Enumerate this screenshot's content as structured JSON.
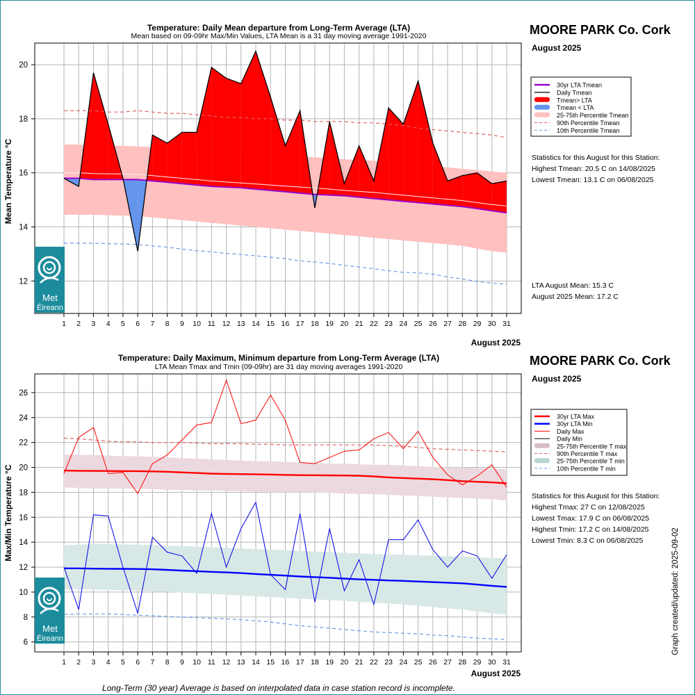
{
  "station": "MOORE PARK Co. Cork",
  "month_label": "August 2025",
  "x_axis_label": "August 2025",
  "footer_note": "Long-Term (30 year) Average is based on interpolated data in case station record is incomplete.",
  "updated_label": "Graph created/updated:  2025-09-02",
  "logo": {
    "line1": "Met",
    "line2": "Éireann",
    "icon": "met-eireann-swirl-logo"
  },
  "colors": {
    "red": "#ff0000",
    "purple": "#9900cc",
    "blue": "#6495ed",
    "pink_band": "#ffc0c0",
    "max_band": "#ecd9e0",
    "min_band": "#d8e8e6",
    "lta_max": "#ff0000",
    "lta_min": "#0000ff",
    "logo_bg": "#1c8c9c"
  },
  "top": {
    "title": "Temperature: Daily Mean departure from Long-Term Average (LTA)",
    "subtitle": "Mean based on 09-09hr Max/Min Values, LTA Mean is a 31 day moving average 1991-2020",
    "ylabel": "Mean Temperature °C",
    "legend": [
      "30yr LTA Tmean",
      "Daily Tmean",
      "Tmean> LTA",
      "Tmean < LTA",
      "25-75th Percentile Tmean",
      "90th Percentile Tmean",
      "10th Percentile Tmean"
    ],
    "stats": [
      "Statistics for this August for this Station:",
      "Highest Tmean: 20.5 C on 14/08/2025",
      "Lowest Tmean: 13.1 C on 06/08/2025"
    ],
    "means": [
      "LTA August Mean: 15.3 C",
      "August 2025 Mean: 17.2 C"
    ]
  },
  "bottom": {
    "title": "Temperature: Daily Maximum, Minimum departure from Long-Term Average (LTA)",
    "subtitle": "LTA Mean Tmax and Tmin (09-09hr) are 31 day moving averages 1991-2020",
    "ylabel": "Max/Min Temperature °C",
    "legend": [
      "30yr LTA Max",
      "30yr LTA Min",
      "Daily Max",
      "Daily Min",
      "25-75th Percentile T max",
      "90th Percentile T max",
      "25-75th Percentile T min",
      "10th Percentile T min"
    ],
    "stats": [
      "Statistics for this August for this Station:",
      "Highest Tmax: 27 C on 12/08/2025",
      "Lowest Tmax: 17.9 C on 06/08/2025",
      "Highest Tmin: 17.2 C on 14/08/2025",
      "Lowest Tmin: 8.3 C on 06/08/2025"
    ]
  },
  "chart_data": [
    {
      "type": "area",
      "title": "Temperature: Daily Mean departure from Long-Term Average (LTA)",
      "xlabel": "August 2025",
      "ylabel": "Mean Temperature °C",
      "x": [
        1,
        2,
        3,
        4,
        5,
        6,
        7,
        8,
        9,
        10,
        11,
        12,
        13,
        14,
        15,
        16,
        17,
        18,
        19,
        20,
        21,
        22,
        23,
        24,
        25,
        26,
        27,
        28,
        29,
        30,
        31
      ],
      "ylim": [
        10.8,
        20.8
      ],
      "yticks": [
        12,
        14,
        16,
        18,
        20
      ],
      "grid": true,
      "legend_position": "right",
      "series": [
        {
          "name": "Daily Tmean",
          "values": [
            15.8,
            15.5,
            19.7,
            17.8,
            15.8,
            13.1,
            17.4,
            17.1,
            17.5,
            17.5,
            19.9,
            19.5,
            19.3,
            20.5,
            18.8,
            17.0,
            18.3,
            14.7,
            17.9,
            15.6,
            17.0,
            15.7,
            18.4,
            17.8,
            19.4,
            17.1,
            15.7,
            15.9,
            16.0,
            15.6,
            15.7
          ]
        },
        {
          "name": "30yr LTA Tmean",
          "values": [
            15.8,
            15.8,
            15.75,
            15.75,
            15.75,
            15.75,
            15.7,
            15.65,
            15.6,
            15.55,
            15.5,
            15.47,
            15.45,
            15.4,
            15.35,
            15.3,
            15.25,
            15.2,
            15.18,
            15.15,
            15.1,
            15.05,
            15.0,
            14.95,
            14.9,
            14.85,
            14.8,
            14.75,
            14.68,
            14.6,
            14.52
          ]
        },
        {
          "name": "90th Percentile Tmean",
          "values": [
            18.3,
            18.3,
            18.3,
            18.25,
            18.25,
            18.3,
            18.25,
            18.2,
            18.2,
            18.15,
            18.1,
            18.05,
            18.05,
            18.0,
            18.0,
            17.95,
            17.95,
            17.9,
            17.9,
            17.9,
            17.85,
            17.85,
            17.8,
            17.75,
            17.65,
            17.6,
            17.55,
            17.5,
            17.45,
            17.4,
            17.3
          ]
        },
        {
          "name": "10th Percentile Tmean",
          "values": [
            13.4,
            13.4,
            13.4,
            13.38,
            13.37,
            13.35,
            13.3,
            13.25,
            13.18,
            13.12,
            13.08,
            13.02,
            12.98,
            12.93,
            12.88,
            12.82,
            12.75,
            12.7,
            12.65,
            12.58,
            12.52,
            12.45,
            12.38,
            12.32,
            12.3,
            12.25,
            12.15,
            12.08,
            11.98,
            11.92,
            11.88
          ]
        },
        {
          "name": "25-75th Percentile Tmean (25th)",
          "values": [
            14.45,
            14.45,
            14.45,
            14.43,
            14.42,
            14.4,
            14.35,
            14.3,
            14.25,
            14.2,
            14.15,
            14.1,
            14.05,
            14.0,
            13.95,
            13.9,
            13.85,
            13.8,
            13.75,
            13.7,
            13.65,
            13.6,
            13.55,
            13.5,
            13.45,
            13.4,
            13.35,
            13.3,
            13.2,
            13.1,
            13.05
          ]
        },
        {
          "name": "25-75th Percentile Tmean (75th)",
          "values": [
            17.05,
            17.05,
            17.0,
            17.0,
            17.0,
            16.98,
            16.95,
            16.9,
            16.85,
            16.8,
            16.75,
            16.72,
            16.7,
            16.68,
            16.65,
            16.62,
            16.6,
            16.58,
            16.55,
            16.5,
            16.48,
            16.45,
            16.4,
            16.35,
            16.3,
            16.25,
            16.2,
            16.15,
            16.1,
            16.05,
            16.0
          ]
        }
      ]
    },
    {
      "type": "line",
      "title": "Temperature: Daily Maximum, Minimum departure from Long-Term Average (LTA)",
      "xlabel": "August 2025",
      "ylabel": "Max/Min Temperature °C",
      "x": [
        1,
        2,
        3,
        4,
        5,
        6,
        7,
        8,
        9,
        10,
        11,
        12,
        13,
        14,
        15,
        16,
        17,
        18,
        19,
        20,
        21,
        22,
        23,
        24,
        25,
        26,
        27,
        28,
        29,
        30,
        31
      ],
      "ylim": [
        5.2,
        27.5
      ],
      "yticks": [
        6,
        8,
        10,
        12,
        14,
        16,
        18,
        20,
        22,
        24,
        26
      ],
      "grid": true,
      "legend_position": "right",
      "series": [
        {
          "name": "Daily Max",
          "values": [
            19.5,
            22.4,
            23.2,
            19.5,
            19.6,
            17.9,
            20.3,
            21.0,
            22.2,
            23.4,
            23.6,
            27.0,
            23.5,
            23.8,
            25.8,
            23.8,
            20.4,
            20.3,
            20.8,
            21.3,
            21.4,
            22.3,
            22.8,
            21.5,
            22.9,
            20.8,
            19.4,
            18.6,
            19.3,
            20.2,
            18.4
          ]
        },
        {
          "name": "Daily Min",
          "values": [
            12.0,
            8.6,
            16.2,
            16.1,
            12.0,
            8.3,
            14.4,
            13.2,
            12.9,
            11.5,
            16.3,
            12.0,
            15.1,
            17.2,
            11.4,
            10.2,
            16.3,
            9.2,
            15.1,
            10.1,
            12.6,
            9.0,
            14.2,
            14.2,
            15.8,
            13.4,
            12.0,
            13.3,
            12.9,
            11.1,
            13.0
          ]
        },
        {
          "name": "30yr LTA Max",
          "values": [
            19.75,
            19.73,
            19.72,
            19.71,
            19.7,
            19.7,
            19.68,
            19.65,
            19.6,
            19.55,
            19.5,
            19.48,
            19.46,
            19.45,
            19.43,
            19.4,
            19.38,
            19.37,
            19.36,
            19.35,
            19.33,
            19.28,
            19.2,
            19.15,
            19.1,
            19.05,
            18.98,
            18.9,
            18.85,
            18.8,
            18.72
          ]
        },
        {
          "name": "30yr LTA Min",
          "values": [
            11.9,
            11.9,
            11.88,
            11.87,
            11.86,
            11.85,
            11.83,
            11.78,
            11.72,
            11.68,
            11.62,
            11.58,
            11.52,
            11.45,
            11.38,
            11.32,
            11.25,
            11.2,
            11.15,
            11.08,
            11.02,
            10.98,
            10.93,
            10.9,
            10.85,
            10.8,
            10.75,
            10.7,
            10.6,
            10.5,
            10.42
          ]
        },
        {
          "name": "90th Percentile T max",
          "values": [
            22.35,
            22.3,
            22.2,
            22.1,
            22.05,
            22.05,
            22.0,
            22.0,
            22.0,
            21.95,
            21.9,
            21.9,
            21.9,
            21.85,
            21.85,
            21.8,
            21.8,
            21.8,
            21.8,
            21.8,
            21.8,
            21.8,
            21.75,
            21.7,
            21.6,
            21.5,
            21.45,
            21.4,
            21.35,
            21.3,
            21.25
          ]
        },
        {
          "name": "10th Percentile T min",
          "values": [
            8.2,
            8.25,
            8.25,
            8.25,
            8.2,
            8.15,
            8.1,
            8.05,
            7.98,
            7.95,
            7.9,
            7.85,
            7.78,
            7.7,
            7.6,
            7.45,
            7.3,
            7.2,
            7.1,
            7.0,
            6.9,
            6.8,
            6.75,
            6.7,
            6.65,
            6.55,
            6.5,
            6.4,
            6.3,
            6.25,
            6.2
          ]
        },
        {
          "name": "25-75th Percentile T max (25th)",
          "values": [
            18.4,
            18.35,
            18.3,
            18.3,
            18.3,
            18.3,
            18.25,
            18.2,
            18.2,
            18.15,
            18.15,
            18.12,
            18.1,
            18.05,
            18.0,
            18.0,
            18.0,
            17.98,
            17.95,
            17.9,
            17.88,
            17.85,
            17.8,
            17.75,
            17.7,
            17.65,
            17.6,
            17.55,
            17.5,
            17.45,
            17.35
          ]
        },
        {
          "name": "25-75th Percentile T max (75th)",
          "values": [
            21.05,
            21.0,
            21.0,
            20.95,
            20.9,
            20.9,
            20.85,
            20.8,
            20.75,
            20.7,
            20.65,
            20.6,
            20.55,
            20.5,
            20.5,
            20.45,
            20.4,
            20.35,
            20.3,
            20.3,
            20.25,
            20.2,
            20.2,
            20.15,
            20.1,
            20.05,
            20.0,
            20.0,
            19.95,
            19.9,
            19.85
          ]
        },
        {
          "name": "25-75th Percentile T min (25th)",
          "values": [
            10.25,
            10.22,
            10.2,
            10.18,
            10.15,
            10.12,
            10.08,
            10.02,
            9.95,
            9.9,
            9.85,
            9.78,
            9.72,
            9.65,
            9.6,
            9.55,
            9.48,
            9.42,
            9.35,
            9.3,
            9.22,
            9.15,
            9.08,
            9.0,
            8.9,
            8.8,
            8.7,
            8.6,
            8.45,
            8.3,
            8.2
          ]
        },
        {
          "name": "25-75th Percentile T min (75th)",
          "values": [
            13.75,
            13.8,
            13.85,
            13.85,
            13.82,
            13.8,
            13.78,
            13.72,
            13.7,
            13.65,
            13.6,
            13.55,
            13.5,
            13.45,
            13.4,
            13.35,
            13.3,
            13.25,
            13.2,
            13.15,
            13.1,
            13.05,
            13.02,
            13.0,
            12.95,
            12.92,
            12.88,
            12.85,
            12.8,
            12.75,
            12.72
          ]
        }
      ]
    }
  ]
}
